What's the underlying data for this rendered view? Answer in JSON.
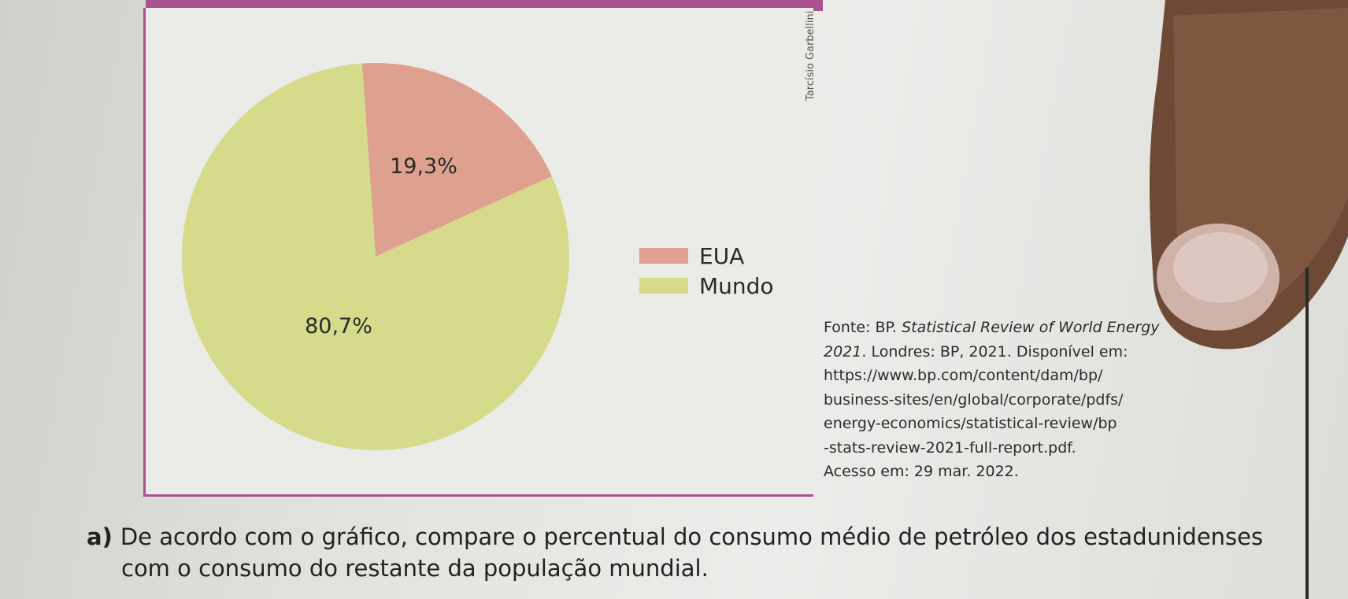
{
  "credit": "Tarcísio Garbellini",
  "chart_data": {
    "type": "pie",
    "title": "",
    "slices": [
      {
        "label": "EUA",
        "value": 19.3,
        "display": "19,3%",
        "color": "#dea08f"
      },
      {
        "label": "Mundo",
        "value": 80.7,
        "display": "80,7%",
        "color": "#d5db8a"
      }
    ],
    "legend": [
      "EUA",
      "Mundo"
    ],
    "legend_position": "right"
  },
  "source": {
    "prefix": "Fonte: BP. ",
    "title_italic_1": "Statistical Review of World Energy",
    "title_italic_2": "2021",
    "line2_rest": ". Londres: BP, 2021. Disponível em:",
    "line3": "https://www.bp.com/content/dam/bp/",
    "line4": "business-sites/en/global/corporate/pdfs/",
    "line5": "energy-economics/statistical-review/bp",
    "line6": "-stats-review-2021-full-report.pdf.",
    "line7": "Acesso em: 29 mar. 2022."
  },
  "question": {
    "letter": "a)",
    "line1": "De acordo com o gráfico, compare o percentual do consumo médio de petróleo dos estadunidenses",
    "line2": "com o consumo do restante da população mundial."
  }
}
